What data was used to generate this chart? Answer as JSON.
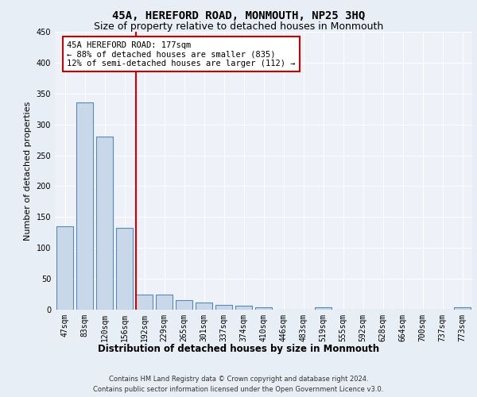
{
  "title": "45A, HEREFORD ROAD, MONMOUTH, NP25 3HQ",
  "subtitle": "Size of property relative to detached houses in Monmouth",
  "xlabel": "Distribution of detached houses by size in Monmouth",
  "ylabel": "Number of detached properties",
  "footer_line1": "Contains HM Land Registry data © Crown copyright and database right 2024.",
  "footer_line2": "Contains public sector information licensed under the Open Government Licence v3.0.",
  "categories": [
    "47sqm",
    "83sqm",
    "120sqm",
    "156sqm",
    "192sqm",
    "229sqm",
    "265sqm",
    "301sqm",
    "337sqm",
    "374sqm",
    "410sqm",
    "446sqm",
    "483sqm",
    "519sqm",
    "555sqm",
    "592sqm",
    "628sqm",
    "664sqm",
    "700sqm",
    "737sqm",
    "773sqm"
  ],
  "values": [
    135,
    335,
    280,
    133,
    25,
    25,
    15,
    12,
    8,
    6,
    4,
    0,
    0,
    4,
    0,
    0,
    0,
    0,
    0,
    0,
    4
  ],
  "bar_color": "#c8d8e8",
  "bar_edge_color": "#5588bb",
  "bar_edge_width": 0.8,
  "ylim": [
    0,
    450
  ],
  "yticks": [
    0,
    50,
    100,
    150,
    200,
    250,
    300,
    350,
    400,
    450
  ],
  "red_line_color": "#cc0000",
  "annotation_text_line1": "45A HEREFORD ROAD: 177sqm",
  "annotation_text_line2": "← 88% of detached houses are smaller (835)",
  "annotation_text_line3": "12% of semi-detached houses are larger (112) →",
  "annotation_box_color": "#ffffff",
  "annotation_border_color": "#cc0000",
  "bg_color": "#e8eef5",
  "plot_bg_color": "#eef2f8",
  "grid_color": "#ffffff",
  "title_fontsize": 10,
  "subtitle_fontsize": 9,
  "tick_fontsize": 7,
  "ylabel_fontsize": 8,
  "xlabel_fontsize": 8.5,
  "footer_fontsize": 6,
  "annotation_fontsize": 7.5
}
